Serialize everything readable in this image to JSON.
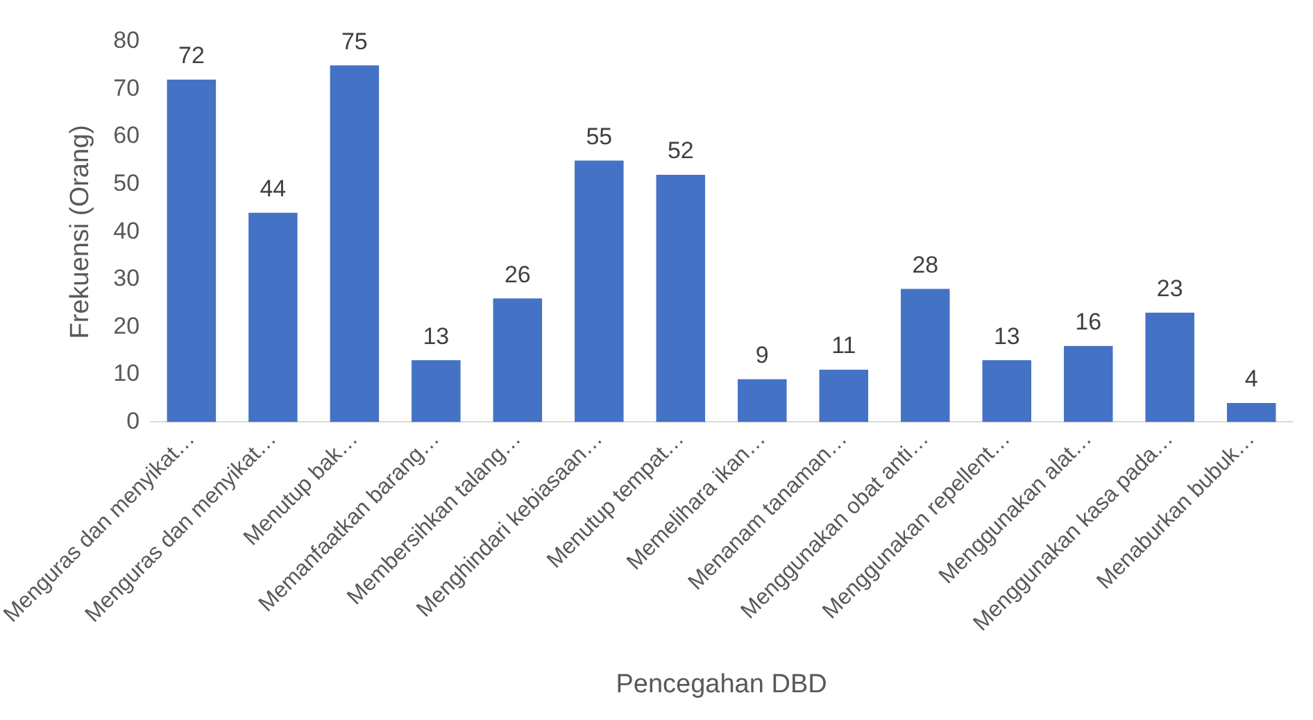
{
  "chart_data": {
    "type": "bar",
    "xlabel": "Pencegahan DBD",
    "ylabel": "Frekuensi (Orang)",
    "categories": [
      "Menguras dan menyikat…",
      "Menguras dan menyikat…",
      "Menutup bak…",
      "Memanfaatkan barang…",
      "Membersihkan talang…",
      "Menghindari kebiasaan…",
      "Menutup tempat…",
      "Memelihara ikan…",
      "Menanam tanaman…",
      "Menggunakan obat anti…",
      "Menggunakan repellent…",
      "Menggunakan alat…",
      "Menggunakan kasa pada…",
      "Menaburkan bubuk…"
    ],
    "values": [
      72,
      44,
      75,
      13,
      26,
      55,
      52,
      9,
      11,
      28,
      13,
      16,
      23,
      4
    ],
    "color": "#4472c4",
    "ylim": [
      0,
      80
    ],
    "yticks": [
      0,
      10,
      20,
      30,
      40,
      50,
      60,
      70,
      80
    ],
    "grid": false,
    "legend": false,
    "data_labels": true
  }
}
